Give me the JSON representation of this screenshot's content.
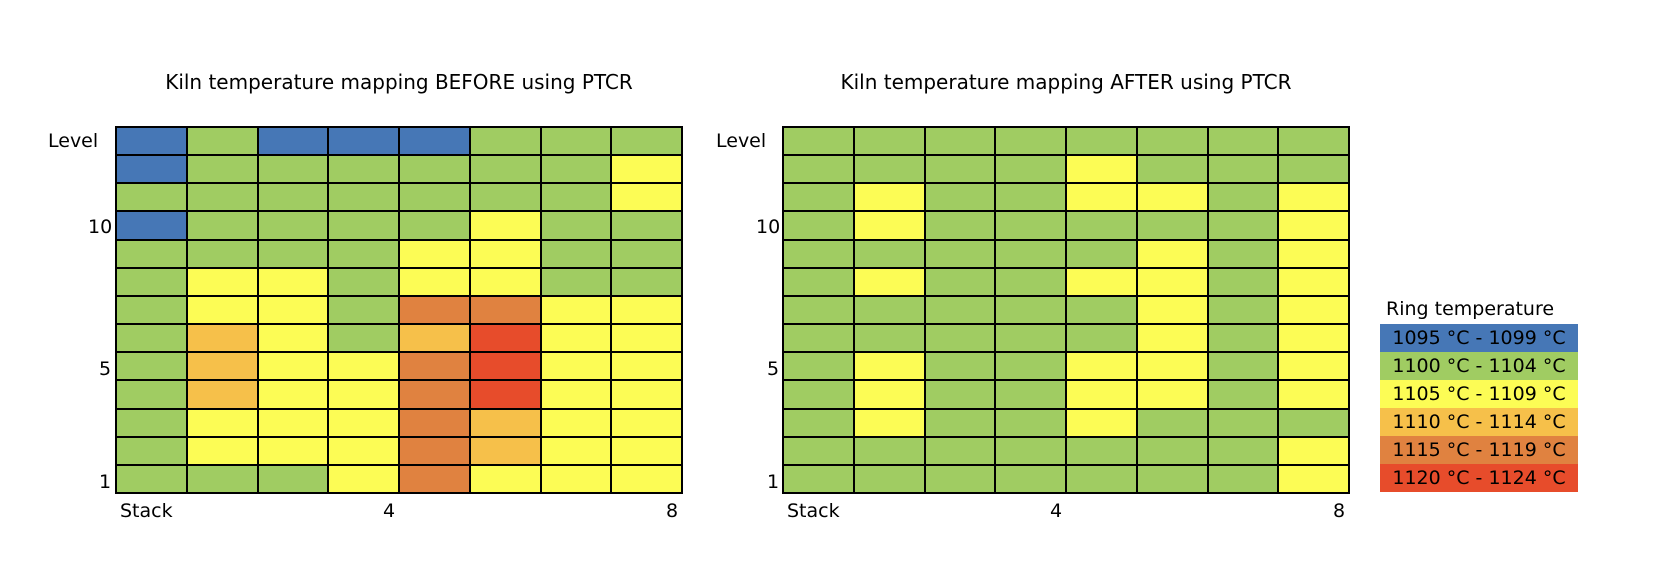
{
  "chart_data": [
    {
      "type": "heatmap",
      "title": "Kiln temperature mapping BEFORE using PTCR",
      "ylabel": "Level",
      "xlabel": "Stack",
      "y_tick_labels": [
        "10",
        "5",
        "1"
      ],
      "x_tick_labels": [
        "4",
        "8"
      ],
      "levels_top_to_bottom": [
        13,
        12,
        11,
        10,
        9,
        8,
        7,
        6,
        5,
        4,
        3,
        2,
        1
      ],
      "stacks": [
        1,
        2,
        3,
        4,
        5,
        6,
        7,
        8
      ],
      "grid_category_index": [
        [
          0,
          1,
          0,
          0,
          0,
          1,
          1,
          1
        ],
        [
          0,
          1,
          1,
          1,
          1,
          1,
          1,
          2
        ],
        [
          1,
          1,
          1,
          1,
          1,
          1,
          1,
          2
        ],
        [
          0,
          1,
          1,
          1,
          1,
          2,
          1,
          1
        ],
        [
          1,
          1,
          1,
          1,
          2,
          2,
          1,
          1
        ],
        [
          1,
          2,
          2,
          1,
          2,
          2,
          1,
          1
        ],
        [
          1,
          2,
          2,
          1,
          4,
          4,
          2,
          2
        ],
        [
          1,
          3,
          2,
          1,
          3,
          5,
          2,
          2
        ],
        [
          1,
          3,
          2,
          2,
          4,
          5,
          2,
          2
        ],
        [
          1,
          3,
          2,
          2,
          4,
          5,
          2,
          2
        ],
        [
          1,
          2,
          2,
          2,
          4,
          3,
          2,
          2
        ],
        [
          1,
          2,
          2,
          2,
          4,
          3,
          2,
          2
        ],
        [
          1,
          1,
          1,
          2,
          4,
          2,
          2,
          2
        ]
      ]
    },
    {
      "type": "heatmap",
      "title": "Kiln temperature mapping AFTER using PTCR",
      "ylabel": "Level",
      "xlabel": "Stack",
      "y_tick_labels": [
        "10",
        "5",
        "1"
      ],
      "x_tick_labels": [
        "4",
        "8"
      ],
      "levels_top_to_bottom": [
        13,
        12,
        11,
        10,
        9,
        8,
        7,
        6,
        5,
        4,
        3,
        2,
        1
      ],
      "stacks": [
        1,
        2,
        3,
        4,
        5,
        6,
        7,
        8
      ],
      "grid_category_index": [
        [
          1,
          1,
          1,
          1,
          1,
          1,
          1,
          1
        ],
        [
          1,
          1,
          1,
          1,
          2,
          1,
          1,
          1
        ],
        [
          1,
          2,
          1,
          1,
          2,
          2,
          1,
          2
        ],
        [
          1,
          2,
          1,
          1,
          1,
          1,
          1,
          2
        ],
        [
          1,
          1,
          1,
          1,
          1,
          2,
          1,
          2
        ],
        [
          1,
          2,
          1,
          1,
          2,
          2,
          1,
          2
        ],
        [
          1,
          1,
          1,
          1,
          1,
          2,
          1,
          2
        ],
        [
          1,
          1,
          1,
          1,
          1,
          2,
          1,
          2
        ],
        [
          1,
          2,
          1,
          1,
          2,
          2,
          1,
          2
        ],
        [
          1,
          2,
          1,
          1,
          2,
          2,
          1,
          2
        ],
        [
          1,
          2,
          1,
          1,
          2,
          1,
          1,
          1
        ],
        [
          1,
          1,
          1,
          1,
          1,
          1,
          1,
          2
        ],
        [
          1,
          1,
          1,
          1,
          1,
          1,
          1,
          2
        ]
      ]
    }
  ],
  "legend": {
    "title": "Ring temperature",
    "categories": [
      {
        "label": "1095 °C - 1099 °C",
        "color": "#4677b6"
      },
      {
        "label": "1100 °C - 1104 °C",
        "color": "#a0cc62"
      },
      {
        "label": "1105 °C - 1109 °C",
        "color": "#fcfc55"
      },
      {
        "label": "1110 °C - 1114 °C",
        "color": "#f6c04a"
      },
      {
        "label": "1115 °C - 1119 °C",
        "color": "#e08240"
      },
      {
        "label": "1120 °C - 1124 °C",
        "color": "#e74c2b"
      }
    ]
  }
}
